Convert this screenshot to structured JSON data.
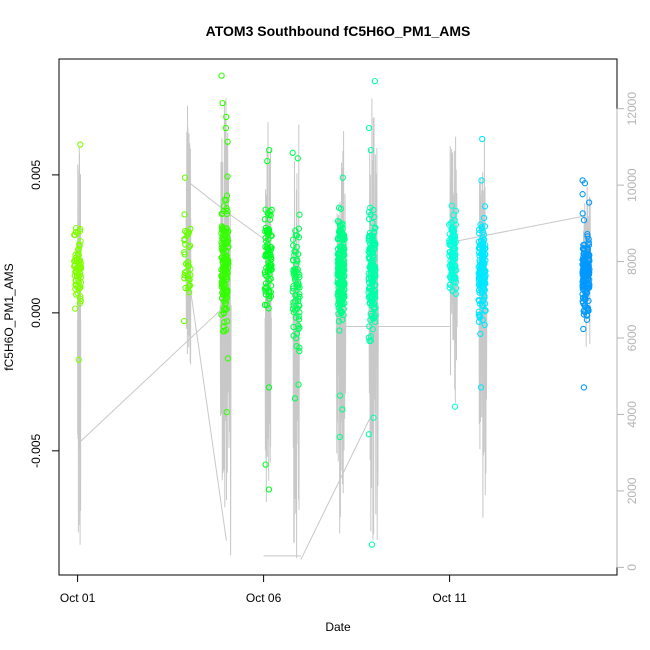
{
  "chart_data": {
    "type": "scatter",
    "title": "ATOM3 Southbound fC5H6O_PM1_AMS",
    "xlabel": "Date",
    "ylabel": "fC5H6O_PM1_AMS",
    "xlim": [
      "2016-09-30T12:00",
      "2016-10-15T12:00"
    ],
    "ylim": [
      -0.0095,
      0.0092
    ],
    "y2lim": [
      -200,
      13300
    ],
    "x_ticks": [
      {
        "label": "Oct 01",
        "date": "2016-10-01T00:00"
      },
      {
        "label": "Oct 06",
        "date": "2016-10-06T00:00"
      },
      {
        "label": "Oct 11",
        "date": "2016-10-11T00:00"
      }
    ],
    "y_ticks": [
      {
        "label": "-0.005",
        "value": -0.005
      },
      {
        "label": "0.000",
        "value": 0.0
      },
      {
        "label": "0.005",
        "value": 0.005
      }
    ],
    "y2_ticks": [
      {
        "label": "0",
        "value": 0
      },
      {
        "label": "2000",
        "value": 2000
      },
      {
        "label": "4000",
        "value": 4000
      },
      {
        "label": "6000",
        "value": 6000
      },
      {
        "label": "8000",
        "value": 8000
      },
      {
        "label": "10000",
        "value": 10000
      },
      {
        "label": "12000",
        "value": 12000
      }
    ],
    "grid": false,
    "legend": "none",
    "right_axis_color": "#b4b4b4",
    "altitude_line_color": "#c8c8c8",
    "point_marker": "open-circle",
    "series": [
      {
        "x": "2016-10-01T00:00",
        "color": "#80ff00",
        "n": 70,
        "mean": 0.0017,
        "sd": 0.0008,
        "outliers": [
          0.0061,
          -0.0017
        ]
      },
      {
        "x": "2016-10-03T23:00",
        "color": "#66ff00",
        "n": 35,
        "mean": 0.0018,
        "sd": 0.0009,
        "outliers": [
          0.0049,
          -0.0003
        ]
      },
      {
        "x": "2016-10-04T23:00",
        "color": "#33ff00",
        "n": 160,
        "mean": 0.0018,
        "sd": 0.0013,
        "outliers": [
          0.0086,
          0.0076,
          0.0071,
          0.0067,
          0.0062,
          -0.0036
        ]
      },
      {
        "x": "2016-10-06T03:00",
        "color": "#00ff22",
        "n": 80,
        "mean": 0.002,
        "sd": 0.0011,
        "outliers": [
          0.0059,
          0.0055,
          -0.0027,
          -0.0055,
          -0.0064
        ]
      },
      {
        "x": "2016-10-06T21:00",
        "color": "#00ff55",
        "n": 70,
        "mean": 0.001,
        "sd": 0.0013,
        "outliers": [
          0.0058,
          0.0056,
          -0.0026,
          -0.0031
        ]
      },
      {
        "x": "2016-10-08T02:00",
        "color": "#00ff88",
        "n": 200,
        "mean": 0.0015,
        "sd": 0.0011,
        "outliers": [
          0.0049,
          -0.003,
          -0.0035,
          -0.0045
        ]
      },
      {
        "x": "2016-10-08T22:00",
        "color": "#00ffaa",
        "n": 150,
        "mean": 0.0015,
        "sd": 0.0012,
        "outliers": [
          0.0084,
          0.0067,
          0.0059,
          -0.0038,
          -0.0044,
          -0.0084
        ]
      },
      {
        "x": "2016-10-11T02:00",
        "color": "#00ffdd",
        "n": 90,
        "mean": 0.0022,
        "sd": 0.0009,
        "outliers": [
          0.0037,
          0.0032,
          -0.0034
        ]
      },
      {
        "x": "2016-10-11T21:00",
        "color": "#00e8ff",
        "n": 140,
        "mean": 0.0015,
        "sd": 0.0011,
        "outliers": [
          0.0063,
          0.0048,
          -0.0027
        ]
      },
      {
        "x": "2016-10-14T16:00",
        "color": "#0099ff",
        "n": 150,
        "mean": 0.0014,
        "sd": 0.0009,
        "outliers": [
          0.0048,
          0.0047,
          0.0043,
          0.004,
          -0.0027
        ]
      }
    ],
    "altitude_flights": [
      {
        "x_start": "2016-10-01T00:00",
        "x_end": "2016-10-01T02:00",
        "max": 11800,
        "min": 0
      },
      {
        "x_start": "2016-10-03T22:00",
        "x_end": "2016-10-04T01:00",
        "max": 12500,
        "min": 5000
      },
      {
        "x_start": "2016-10-04T20:00",
        "x_end": "2016-10-05T03:00",
        "max": 12300,
        "min": 200
      },
      {
        "x_start": "2016-10-06T01:00",
        "x_end": "2016-10-06T05:00",
        "max": 11700,
        "min": 200
      },
      {
        "x_start": "2016-10-06T19:00",
        "x_end": "2016-10-06T23:00",
        "max": 11600,
        "min": 200
      },
      {
        "x_start": "2016-10-07T23:00",
        "x_end": "2016-10-08T05:00",
        "max": 11900,
        "min": 200
      },
      {
        "x_start": "2016-10-08T20:00",
        "x_end": "2016-10-09T02:00",
        "max": 12300,
        "min": 200
      },
      {
        "x_start": "2016-10-11T00:00",
        "x_end": "2016-10-11T05:00",
        "max": 11600,
        "min": 4200
      },
      {
        "x_start": "2016-10-11T19:00",
        "x_end": "2016-10-12T00:00",
        "max": 11300,
        "min": 1100
      },
      {
        "x_start": "2016-10-14T14:00",
        "x_end": "2016-10-14T19:00",
        "max": 10000,
        "min": 5600
      }
    ],
    "altitude_connectors": [
      [
        "2016-10-01T02:00",
        3300,
        "2016-10-04T22:00",
        6800
      ],
      [
        "2016-10-03T23:00",
        10100,
        "2016-10-05T00:00",
        9300
      ],
      [
        "2016-10-05T00:00",
        9300,
        "2016-10-06T00:00",
        8600
      ],
      [
        "2016-10-04T00:00",
        7500,
        "2016-10-05T00:00",
        700
      ],
      [
        "2016-10-06T00:00",
        300,
        "2016-10-07T00:00",
        300
      ],
      [
        "2016-10-07T00:00",
        200,
        "2016-10-08T23:00",
        4100
      ],
      [
        "2016-10-08T00:00",
        6300,
        "2016-10-11T00:00",
        6300
      ],
      [
        "2016-10-11T00:00",
        8500,
        "2016-10-14T16:00",
        9200
      ]
    ]
  }
}
